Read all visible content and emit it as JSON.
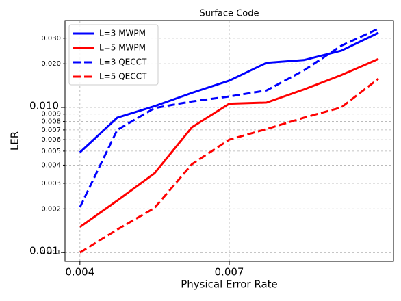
{
  "chart_data": {
    "type": "line",
    "title": "Surface Code",
    "xlabel": "Physical Error Rate",
    "ylabel": "LER",
    "x": [
      0.004,
      0.00475,
      0.0055,
      0.00625,
      0.007,
      0.00775,
      0.0085,
      0.00925,
      0.01
    ],
    "series": [
      {
        "name": "L=3 MWPM",
        "color": "#0000ff",
        "linestyle": "solid",
        "values": [
          0.0049,
          0.0085,
          0.0102,
          0.0126,
          0.0153,
          0.0203,
          0.0212,
          0.0246,
          0.0327
        ]
      },
      {
        "name": "L=5 MWPM",
        "color": "#ff0000",
        "linestyle": "solid",
        "values": [
          0.0015,
          0.00228,
          0.00352,
          0.0073,
          0.0106,
          0.0108,
          0.0133,
          0.0167,
          0.0216
        ]
      },
      {
        "name": "L=3 QECCT",
        "color": "#0000ff",
        "linestyle": "dashed",
        "values": [
          0.00205,
          0.007,
          0.0099,
          0.011,
          0.0119,
          0.0131,
          0.018,
          0.0266,
          0.0349
        ]
      },
      {
        "name": "L=5 QECCT",
        "color": "#ff0000",
        "linestyle": "dashed",
        "values": [
          0.001,
          0.00144,
          0.00203,
          0.00406,
          0.006,
          0.0071,
          0.0085,
          0.01,
          0.0158
        ]
      }
    ],
    "xlim": [
      0.0037,
      0.0103
    ],
    "xticks": [
      {
        "value": 0.004,
        "label": "0.004"
      },
      {
        "value": 0.007,
        "label": "0.007"
      }
    ],
    "ylim": [
      0.00087,
      0.0397
    ],
    "ylog": true,
    "yticks_major": [
      {
        "value": 0.001,
        "label": "0.001"
      },
      {
        "value": 0.01,
        "label": "0.010"
      }
    ],
    "yticks_minor": [
      {
        "value": 0.001,
        "label": "0.001"
      },
      {
        "value": 0.002,
        "label": "0.002"
      },
      {
        "value": 0.003,
        "label": "0.003"
      },
      {
        "value": 0.004,
        "label": "0.004"
      },
      {
        "value": 0.005,
        "label": "0.005"
      },
      {
        "value": 0.006,
        "label": "0.006"
      },
      {
        "value": 0.007,
        "label": "0.007"
      },
      {
        "value": 0.008,
        "label": "0.008"
      },
      {
        "value": 0.009,
        "label": "0.009"
      },
      {
        "value": 0.02,
        "label": "0.020"
      },
      {
        "value": 0.03,
        "label": "0.030"
      }
    ],
    "grid": true,
    "legend": "upper left"
  }
}
